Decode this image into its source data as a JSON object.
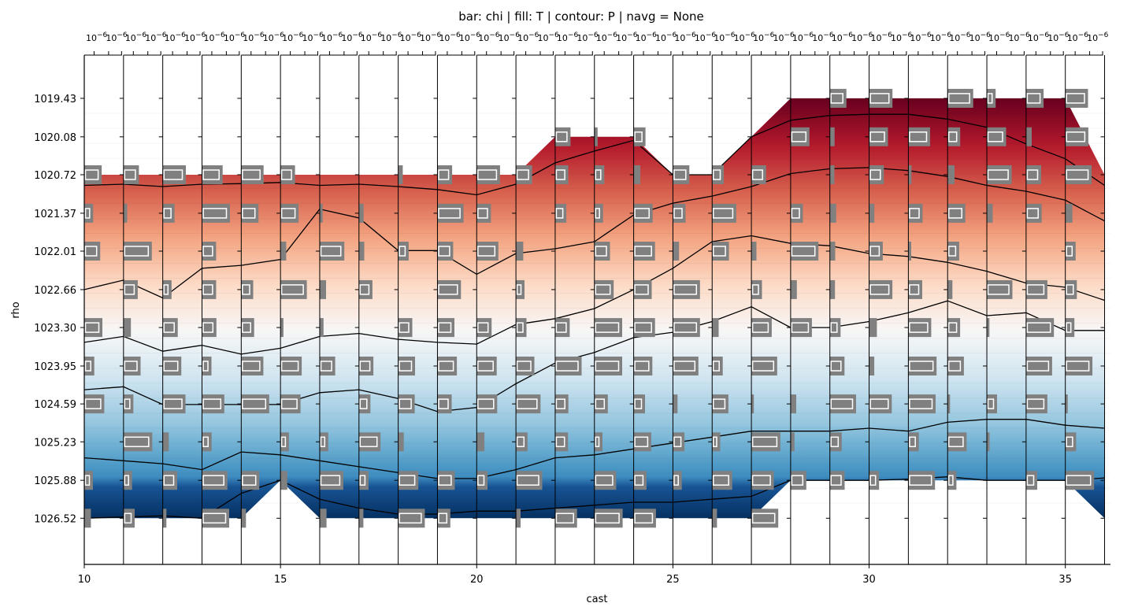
{
  "chart_data": {
    "type": "heatmap",
    "title": "bar: chi | fill: T | contour: P | navg = None",
    "xlabel": "cast",
    "ylabel": "rho",
    "xlim": [
      10,
      36.15
    ],
    "ylim": [
      1027.3,
      1018.7
    ],
    "x_ticks": [
      10,
      15,
      20,
      25,
      30,
      35
    ],
    "y_ticks": [
      "1019.43",
      "1020.08",
      "1020.72",
      "1021.37",
      "1022.01",
      "1022.66",
      "1023.30",
      "1023.95",
      "1024.59",
      "1025.23",
      "1025.88",
      "1026.52"
    ],
    "y_tick_values": [
      1019.43,
      1020.08,
      1020.72,
      1021.37,
      1022.01,
      1022.66,
      1023.3,
      1023.95,
      1024.59,
      1025.23,
      1025.88,
      1026.52
    ],
    "top_axis_tick_label": "10",
    "top_axis_tick_exponent": "−6",
    "fill_colormap": [
      "#67001f",
      "#b2182b",
      "#d6604d",
      "#f4a582",
      "#fddbc7",
      "#f7f7f7",
      "#d1e5f0",
      "#92c5de",
      "#4393c3",
      "#2166ac",
      "#053061"
    ],
    "casts": [
      10,
      11,
      12,
      13,
      14,
      15,
      16,
      17,
      18,
      19,
      20,
      21,
      22,
      23,
      24,
      25,
      26,
      27,
      28,
      29,
      30,
      31,
      32,
      33,
      34,
      35,
      36
    ],
    "fill_top_rho": [
      1020.72,
      1020.72,
      1020.72,
      1020.72,
      1020.72,
      1020.72,
      1020.72,
      1020.72,
      1020.72,
      1020.72,
      1020.72,
      1020.72,
      1020.08,
      1020.08,
      1020.08,
      1020.72,
      1020.72,
      1020.08,
      1019.43,
      1019.43,
      1019.43,
      1019.43,
      1019.43,
      1019.43,
      1019.43,
      1019.43,
      1020.72
    ],
    "fill_bottom_rho": [
      1026.52,
      1026.52,
      1026.52,
      1026.52,
      1026.52,
      1025.88,
      1026.52,
      1026.52,
      1026.52,
      1026.52,
      1026.52,
      1026.52,
      1026.52,
      1026.52,
      1026.52,
      1026.52,
      1026.52,
      1026.52,
      1025.88,
      1025.88,
      1025.88,
      1025.88,
      1025.88,
      1025.88,
      1025.88,
      1025.88,
      1026.52
    ],
    "contours_P": [
      [
        1020.9,
        1020.88,
        1020.92,
        1020.88,
        1020.87,
        1020.85,
        1020.9,
        1020.88,
        1020.92,
        1020.97,
        1021.06,
        1020.88,
        1020.52,
        1020.32,
        1020.14,
        1020.72,
        1020.72,
        1020.08,
        1019.8,
        1019.72,
        1019.7,
        1019.7,
        1019.78,
        1019.92,
        1020.2,
        1020.45,
        1020.9
      ],
      [
        1022.66,
        1022.5,
        1022.8,
        1022.3,
        1022.25,
        1022.15,
        1021.3,
        1021.45,
        1022.0,
        1022.0,
        1022.4,
        1022.05,
        1021.97,
        1021.85,
        1021.4,
        1021.2,
        1021.08,
        1020.92,
        1020.7,
        1020.62,
        1020.6,
        1020.65,
        1020.75,
        1020.9,
        1021.0,
        1021.15,
        1021.5
      ],
      [
        1023.55,
        1023.45,
        1023.7,
        1023.6,
        1023.75,
        1023.65,
        1023.45,
        1023.4,
        1023.5,
        1023.55,
        1023.58,
        1023.25,
        1023.15,
        1022.98,
        1022.66,
        1022.3,
        1021.85,
        1021.75,
        1021.88,
        1021.92,
        1022.05,
        1022.1,
        1022.2,
        1022.35,
        1022.55,
        1022.62,
        1022.84
      ],
      [
        1024.35,
        1024.3,
        1024.6,
        1024.6,
        1024.6,
        1024.6,
        1024.4,
        1024.35,
        1024.5,
        1024.72,
        1024.65,
        1024.25,
        1023.9,
        1023.72,
        1023.47,
        1023.38,
        1023.2,
        1022.95,
        1023.3,
        1023.3,
        1023.2,
        1023.05,
        1022.85,
        1023.1,
        1023.05,
        1023.35,
        1023.35
      ],
      [
        1025.5,
        1025.55,
        1025.6,
        1025.7,
        1025.4,
        1025.45,
        1025.55,
        1025.65,
        1025.75,
        1025.85,
        1025.85,
        1025.7,
        1025.5,
        1025.45,
        1025.35,
        1025.25,
        1025.15,
        1025.05,
        1025.05,
        1025.05,
        1025.0,
        1025.05,
        1024.9,
        1024.85,
        1024.85,
        1024.95,
        1025.0
      ],
      [
        1026.52,
        1026.5,
        1026.48,
        1026.52,
        1026.1,
        1025.88,
        1026.2,
        1026.35,
        1026.45,
        1026.45,
        1026.4,
        1026.4,
        1026.35,
        1026.3,
        1026.25,
        1026.25,
        1026.2,
        1026.15,
        1025.98,
        1025.93,
        1025.9,
        1025.86,
        1025.82,
        1025.88,
        1025.88,
        1025.88,
        1025.84
      ]
    ],
    "chi_scale_cells": 49,
    "grid": false
  }
}
